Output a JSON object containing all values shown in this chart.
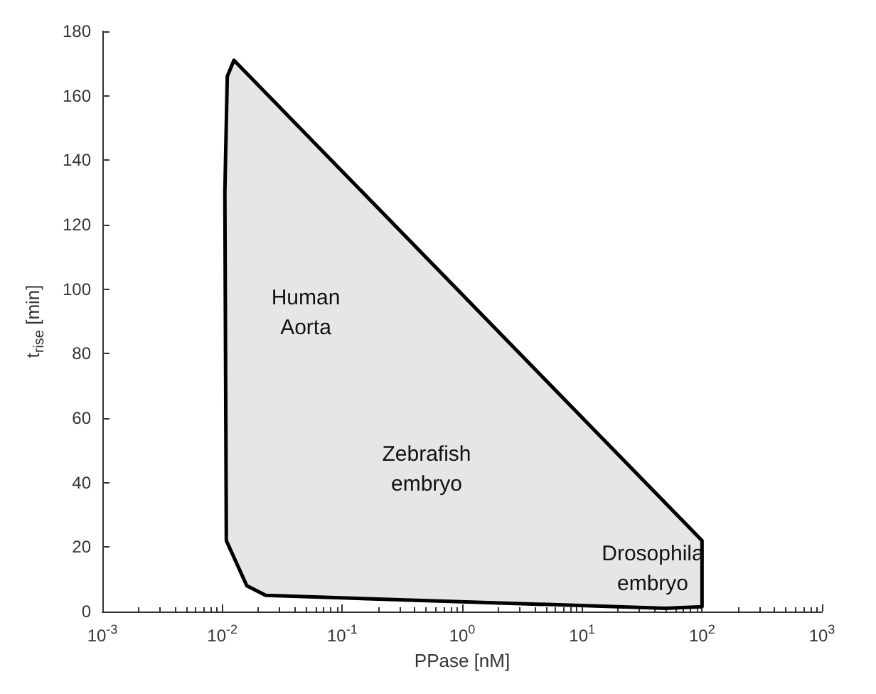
{
  "chart_data": {
    "type": "area",
    "xlabel": "PPase [nM]",
    "ylabel": "t$_{rise}$ [min]",
    "log": "x",
    "grid": false,
    "xlim": [
      0.001,
      1000
    ],
    "ylim": [
      0,
      180
    ],
    "xticks": [
      {
        "value": 0.001,
        "label": "10$^{-3}$"
      },
      {
        "value": 0.01,
        "label": "10$^{-2}$"
      },
      {
        "value": 0.1,
        "label": "10$^{-1}$"
      },
      {
        "value": 1,
        "label": "10$^{0}$"
      },
      {
        "value": 10,
        "label": "10$^{1}$"
      },
      {
        "value": 100,
        "label": "10$^{2}$"
      },
      {
        "value": 1000,
        "label": "10$^{3}$"
      }
    ],
    "yticks": [
      0,
      20,
      40,
      60,
      80,
      100,
      120,
      140,
      160,
      180
    ],
    "series": [
      {
        "color": "#e6e6e6",
        "x": [
          0.0125,
          0.011,
          0.0105,
          0.0108,
          0.016,
          0.023,
          50,
          100,
          100,
          0.0125
        ],
        "values": [
          171,
          166,
          130,
          22,
          8,
          5,
          1,
          1.5,
          22,
          171
        ]
      }
    ],
    "annotations": [
      "Human\nAorta",
      "Zebrafish\nembryo",
      "Drosophila\nembryo"
    ]
  }
}
